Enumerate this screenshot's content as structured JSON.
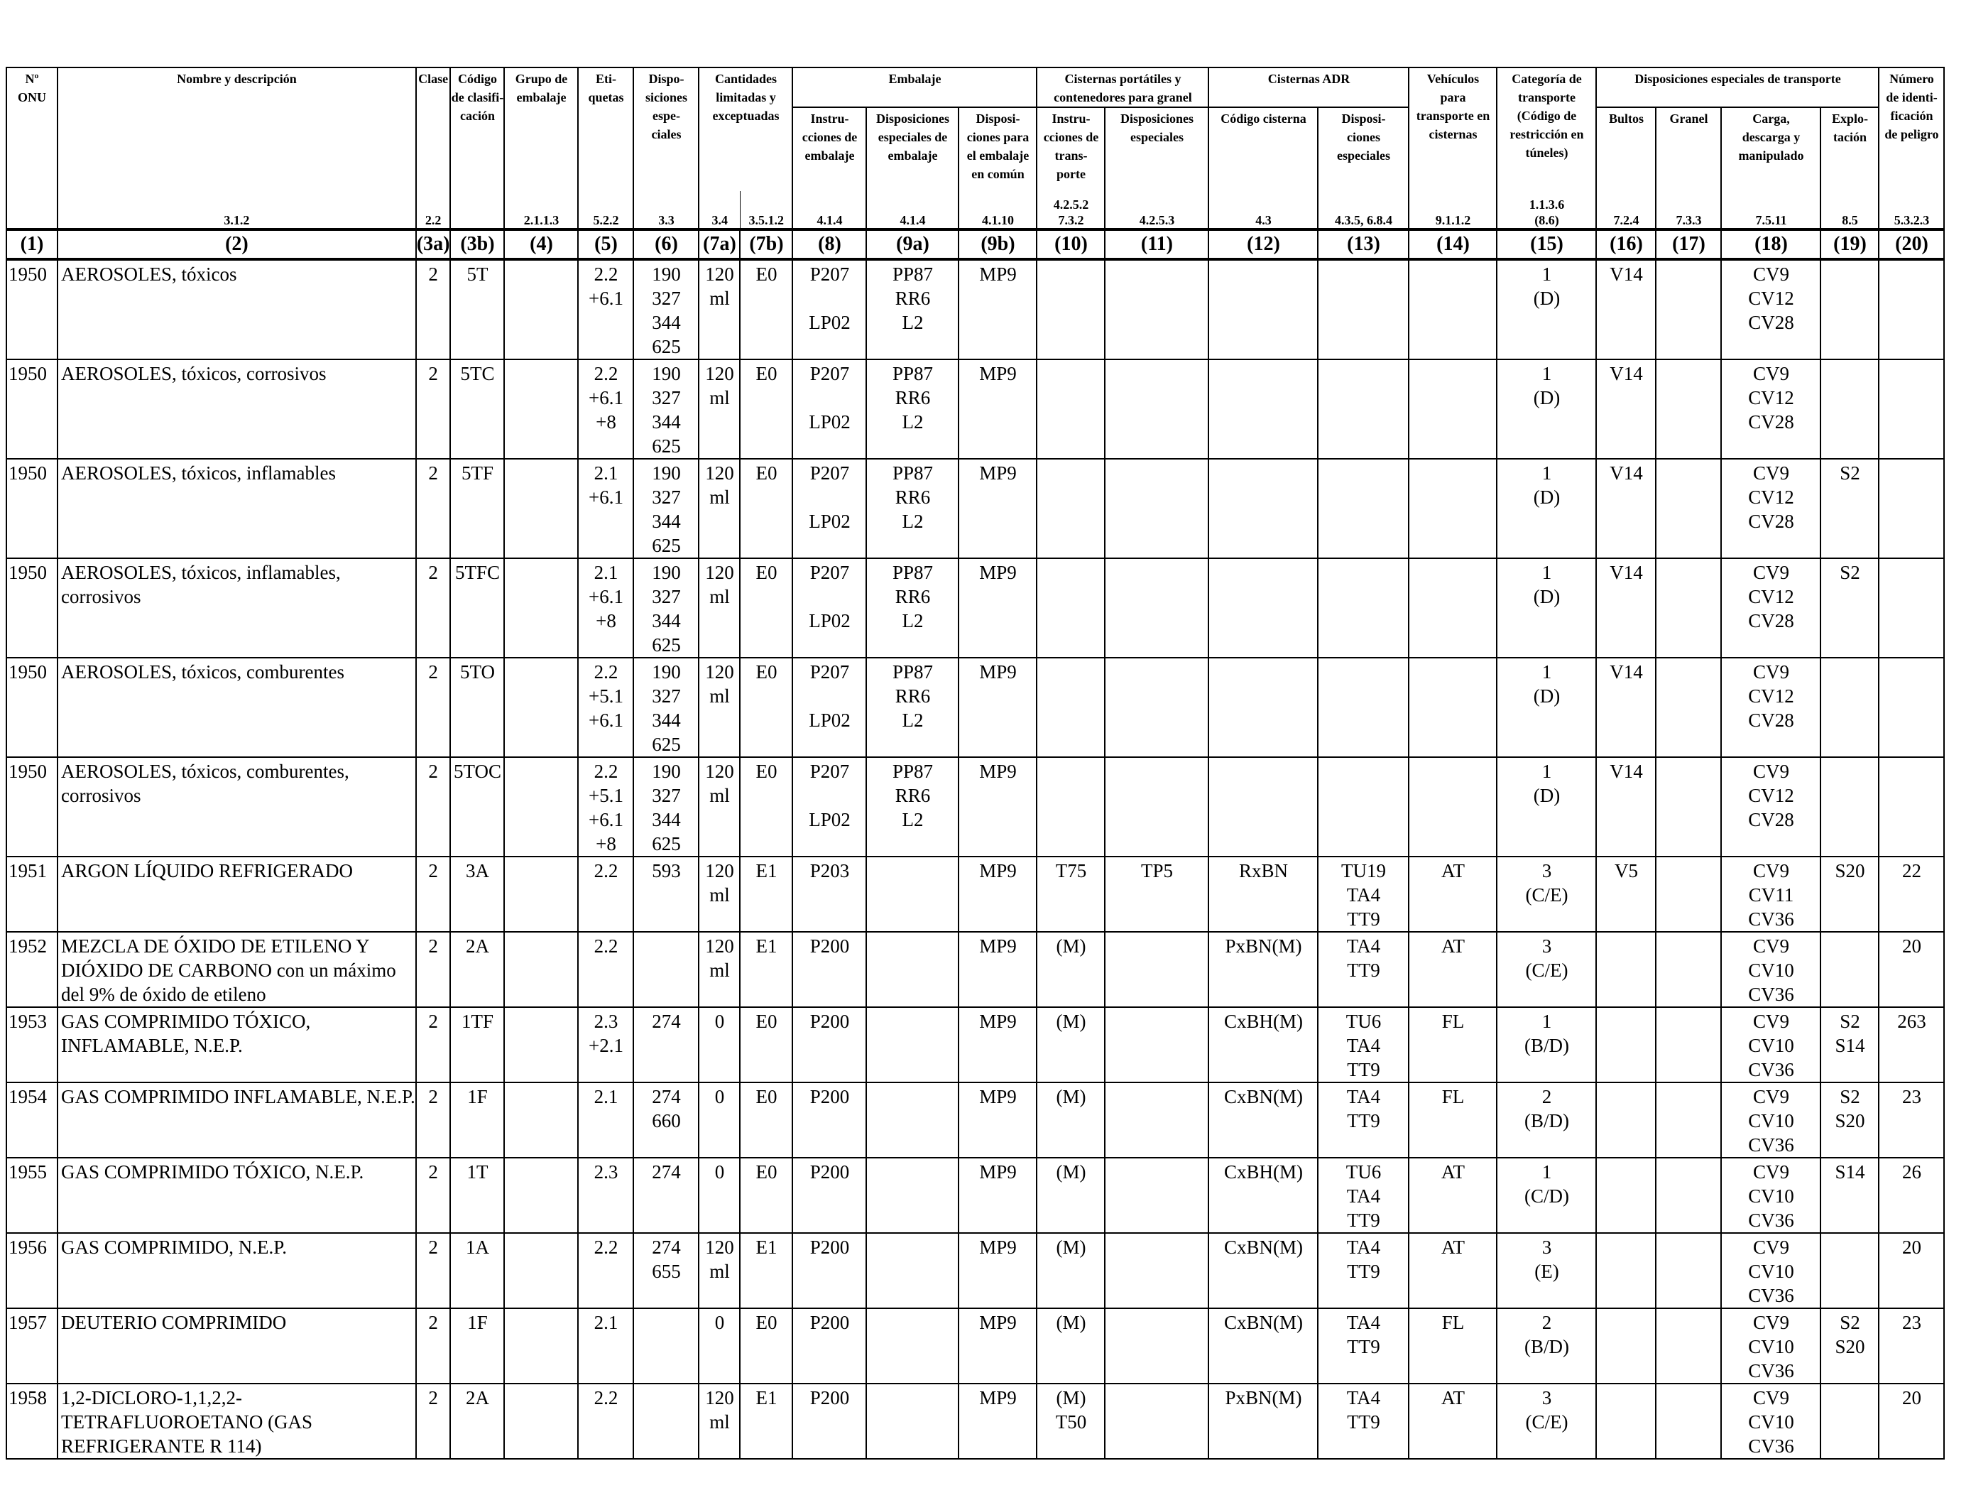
{
  "headers": {
    "onu": [
      "Nº",
      "ONU"
    ],
    "nombre": [
      "Nombre y descripción"
    ],
    "clase": [
      "Clase"
    ],
    "codigo": [
      "Código",
      "de clasifi-",
      "cación"
    ],
    "grupo": [
      "Grupo de",
      "embalaje"
    ],
    "etiquetas": [
      "Eti-",
      "quetas"
    ],
    "disposiciones": [
      "Dispo-",
      "siciones",
      "espe-",
      "ciales"
    ],
    "cantidades": [
      "Cantidades",
      "limitadas y",
      "exceptuadas"
    ],
    "embalaje": [
      "Embalaje"
    ],
    "instrucciones": [
      "Instru-",
      "cciones de",
      "embalaje"
    ],
    "disp_emb": [
      "Disposiciones",
      "especiales de",
      "embalaje"
    ],
    "disp_comun": [
      "Disposi-",
      "ciones para",
      "el embalaje",
      "en común"
    ],
    "cisternas_port": [
      "Cisternas portátiles y",
      "contenedores para granel"
    ],
    "instr_cis": [
      "Instru-",
      "cciones de",
      "trans-",
      "porte"
    ],
    "disp_cis": [
      "Disposiciones",
      "especiales"
    ],
    "cisternas_adr": [
      "Cisternas ADR"
    ],
    "codigo_cisterna": [
      "Código cisterna"
    ],
    "disp_adr": [
      "Disposi-",
      "ciones",
      "especiales"
    ],
    "vehiculos": [
      "Vehículos",
      "para",
      "transporte en",
      "cisternas"
    ],
    "categoria": [
      "Categoría de",
      "transporte",
      "(Código de",
      "restricción en",
      "túneles)"
    ],
    "disp_transporte": [
      "Disposiciones especiales de transporte"
    ],
    "bultos": [
      "Bultos"
    ],
    "granel": [
      "Granel"
    ],
    "carga": [
      "Carga,",
      "descarga y",
      "manipulado"
    ],
    "explotacion": [
      "Explo-",
      "tación"
    ],
    "numero_peligro": [
      "Número",
      "de identi-",
      "ficación",
      "de peligro"
    ]
  },
  "refs": [
    "",
    "3.1.2",
    "2.2",
    "",
    "2.1.1.3",
    "5.2.2",
    "3.3",
    "3.4",
    "3.5.1.2",
    "4.1.4",
    "4.1.4",
    "4.1.10",
    "4.2.5.2\n7.3.2",
    "4.2.5.3",
    "4.3",
    "4.3.5, 6.8.4",
    "9.1.1.2",
    "1.1.3.6\n(8.6)",
    "7.2.4",
    "7.3.3",
    "7.5.11",
    "8.5",
    "5.3.2.3"
  ],
  "colnums": [
    "(1)",
    "(2)",
    "(3a)",
    "(3b)",
    "(4)",
    "(5)",
    "(6)",
    "(7a)",
    "(7b)",
    "(8)",
    "(9a)",
    "(9b)",
    "(10)",
    "(11)",
    "(12)",
    "(13)",
    "(14)",
    "(15)",
    "(16)",
    "(17)",
    "(18)",
    "(19)",
    "(20)"
  ],
  "rows": [
    {
      "c1": "1950",
      "c2": "AEROSOLES, tóxicos",
      "c3a": "2",
      "c3b": "5T",
      "c4": "",
      "c5": "2.2\n+6.1",
      "c6": "190\n327\n344\n625",
      "c7a": "120\nml",
      "c7b": "E0",
      "c8": "P207\n\nLP02",
      "c9a": "PP87\nRR6\nL2",
      "c9b": "MP9",
      "c10": "",
      "c11": "",
      "c12": "",
      "c13": "",
      "c14": "",
      "c15": "1\n(D)",
      "c16": "V14",
      "c17": "",
      "c18": "CV9\nCV12\nCV28",
      "c19": "",
      "c20": ""
    },
    {
      "c1": "1950",
      "c2": "AEROSOLES, tóxicos, corrosivos",
      "c3a": "2",
      "c3b": "5TC",
      "c4": "",
      "c5": "2.2\n+6.1\n+8",
      "c6": "190\n327\n344\n625",
      "c7a": "120\nml",
      "c7b": "E0",
      "c8": "P207\n\nLP02",
      "c9a": "PP87\nRR6\nL2",
      "c9b": "MP9",
      "c10": "",
      "c11": "",
      "c12": "",
      "c13": "",
      "c14": "",
      "c15": "1\n(D)",
      "c16": "V14",
      "c17": "",
      "c18": "CV9\nCV12\nCV28",
      "c19": "",
      "c20": ""
    },
    {
      "c1": "1950",
      "c2": "AEROSOLES, tóxicos, inflamables",
      "c3a": "2",
      "c3b": "5TF",
      "c4": "",
      "c5": "2.1\n+6.1",
      "c6": "190\n327\n344\n625",
      "c7a": "120\nml",
      "c7b": "E0",
      "c8": "P207\n\nLP02",
      "c9a": "PP87\nRR6\nL2",
      "c9b": "MP9",
      "c10": "",
      "c11": "",
      "c12": "",
      "c13": "",
      "c14": "",
      "c15": "1\n(D)",
      "c16": "V14",
      "c17": "",
      "c18": "CV9\nCV12\nCV28",
      "c19": "S2",
      "c20": ""
    },
    {
      "c1": "1950",
      "c2": "AEROSOLES, tóxicos, inflamables,\ncorrosivos",
      "c3a": "2",
      "c3b": "5TFC",
      "c4": "",
      "c5": "2.1\n+6.1\n+8",
      "c6": "190\n327\n344\n625",
      "c7a": "120\nml",
      "c7b": "E0",
      "c8": "P207\n\nLP02",
      "c9a": "PP87\nRR6\nL2",
      "c9b": "MP9",
      "c10": "",
      "c11": "",
      "c12": "",
      "c13": "",
      "c14": "",
      "c15": "1\n(D)",
      "c16": "V14",
      "c17": "",
      "c18": "CV9\nCV12\nCV28",
      "c19": "S2",
      "c20": ""
    },
    {
      "c1": "1950",
      "c2": "AEROSOLES, tóxicos, comburentes",
      "c3a": "2",
      "c3b": "5TO",
      "c4": "",
      "c5": "2.2\n+5.1\n+6.1",
      "c6": "190\n327\n344\n625",
      "c7a": "120\nml",
      "c7b": "E0",
      "c8": "P207\n\nLP02",
      "c9a": "PP87\nRR6\nL2",
      "c9b": "MP9",
      "c10": "",
      "c11": "",
      "c12": "",
      "c13": "",
      "c14": "",
      "c15": "1\n(D)",
      "c16": "V14",
      "c17": "",
      "c18": "CV9\nCV12\nCV28",
      "c19": "",
      "c20": ""
    },
    {
      "c1": "1950",
      "c2": "AEROSOLES, tóxicos, comburentes,\ncorrosivos",
      "c3a": "2",
      "c3b": "5TOC",
      "c4": "",
      "c5": "2.2\n+5.1\n+6.1\n+8",
      "c6": "190\n327\n344\n625",
      "c7a": "120\nml",
      "c7b": "E0",
      "c8": "P207\n\nLP02",
      "c9a": "PP87\nRR6\nL2",
      "c9b": "MP9",
      "c10": "",
      "c11": "",
      "c12": "",
      "c13": "",
      "c14": "",
      "c15": "1\n(D)",
      "c16": "V14",
      "c17": "",
      "c18": "CV9\nCV12\nCV28",
      "c19": "",
      "c20": ""
    },
    {
      "c1": "1951",
      "c2": "ARGON LÍQUIDO REFRIGERADO",
      "c3a": "2",
      "c3b": "3A",
      "c4": "",
      "c5": "2.2",
      "c6": "593",
      "c7a": "120\nml",
      "c7b": "E1",
      "c8": "P203",
      "c9a": "",
      "c9b": "MP9",
      "c10": "T75",
      "c11": "TP5",
      "c12": "RxBN",
      "c13": "TU19\nTA4\nTT9",
      "c14": "AT",
      "c15": "3\n(C/E)",
      "c16": "V5",
      "c17": "",
      "c18": "CV9\nCV11\nCV36",
      "c19": "S20",
      "c20": "22"
    },
    {
      "c1": "1952",
      "c2": "MEZCLA DE ÓXIDO DE ETILENO Y\nDIÓXIDO DE CARBONO con un máximo\ndel 9% de óxido de etileno",
      "c3a": "2",
      "c3b": "2A",
      "c4": "",
      "c5": "2.2",
      "c6": "",
      "c7a": "120\nml",
      "c7b": "E1",
      "c8": "P200",
      "c9a": "",
      "c9b": "MP9",
      "c10": "(M)",
      "c11": "",
      "c12": "PxBN(M)",
      "c13": "TA4\nTT9",
      "c14": "AT",
      "c15": "3\n(C/E)",
      "c16": "",
      "c17": "",
      "c18": "CV9\nCV10\nCV36",
      "c19": "",
      "c20": "20"
    },
    {
      "c1": "1953",
      "c2": "GAS COMPRIMIDO TÓXICO,\nINFLAMABLE, N.E.P.",
      "c3a": "2",
      "c3b": "1TF",
      "c4": "",
      "c5": "2.3\n+2.1",
      "c6": "274",
      "c7a": "0",
      "c7b": "E0",
      "c8": "P200",
      "c9a": "",
      "c9b": "MP9",
      "c10": "(M)",
      "c11": "",
      "c12": "CxBH(M)",
      "c13": "TU6\nTA4\nTT9",
      "c14": "FL",
      "c15": "1\n(B/D)",
      "c16": "",
      "c17": "",
      "c18": "CV9\nCV10\nCV36",
      "c19": "S2\nS14",
      "c20": "263"
    },
    {
      "c1": "1954",
      "c2": "GAS COMPRIMIDO INFLAMABLE, N.E.P.",
      "c3a": "2",
      "c3b": "1F",
      "c4": "",
      "c5": "2.1",
      "c6": "274\n660",
      "c7a": "0",
      "c7b": "E0",
      "c8": "P200",
      "c9a": "",
      "c9b": "MP9",
      "c10": "(M)",
      "c11": "",
      "c12": "CxBN(M)",
      "c13": "TA4\nTT9",
      "c14": "FL",
      "c15": "2\n(B/D)",
      "c16": "",
      "c17": "",
      "c18": "CV9\nCV10\nCV36",
      "c19": "S2\nS20",
      "c20": "23"
    },
    {
      "c1": "1955",
      "c2": "GAS COMPRIMIDO TÓXICO, N.E.P.",
      "c3a": "2",
      "c3b": "1T",
      "c4": "",
      "c5": "2.3",
      "c6": "274",
      "c7a": "0",
      "c7b": "E0",
      "c8": "P200",
      "c9a": "",
      "c9b": "MP9",
      "c10": "(M)",
      "c11": "",
      "c12": "CxBH(M)",
      "c13": "TU6\nTA4\nTT9",
      "c14": "AT",
      "c15": "1\n(C/D)",
      "c16": "",
      "c17": "",
      "c18": "CV9\nCV10\nCV36",
      "c19": "S14",
      "c20": "26"
    },
    {
      "c1": "1956",
      "c2": "GAS COMPRIMIDO, N.E.P.",
      "c3a": "2",
      "c3b": "1A",
      "c4": "",
      "c5": "2.2",
      "c6": "274\n655",
      "c7a": "120\nml",
      "c7b": "E1",
      "c8": "P200",
      "c9a": "",
      "c9b": "MP9",
      "c10": "(M)",
      "c11": "",
      "c12": "CxBN(M)",
      "c13": "TA4\nTT9",
      "c14": "AT",
      "c15": "3\n(E)",
      "c16": "",
      "c17": "",
      "c18": "CV9\nCV10\nCV36",
      "c19": "",
      "c20": "20"
    },
    {
      "c1": "1957",
      "c2": "DEUTERIO COMPRIMIDO",
      "c3a": "2",
      "c3b": "1F",
      "c4": "",
      "c5": "2.1",
      "c6": "",
      "c7a": "0",
      "c7b": "E0",
      "c8": "P200",
      "c9a": "",
      "c9b": "MP9",
      "c10": "(M)",
      "c11": "",
      "c12": "CxBN(M)",
      "c13": "TA4\nTT9",
      "c14": "FL",
      "c15": "2\n(B/D)",
      "c16": "",
      "c17": "",
      "c18": "CV9\nCV10\nCV36",
      "c19": "S2\nS20",
      "c20": "23"
    },
    {
      "c1": "1958",
      "c2": "1,2-DICLORO-1,1,2,2-\nTETRAFLUOROETANO (GAS\nREFRIGERANTE R 114)",
      "c3a": "2",
      "c3b": "2A",
      "c4": "",
      "c5": "2.2",
      "c6": "",
      "c7a": "120\nml",
      "c7b": "E1",
      "c8": "P200",
      "c9a": "",
      "c9b": "MP9",
      "c10": "(M)\nT50",
      "c11": "",
      "c12": "PxBN(M)",
      "c13": "TA4\nTT9",
      "c14": "AT",
      "c15": "3\n(C/E)",
      "c16": "",
      "c17": "",
      "c18": "CV9\nCV10\nCV36",
      "c19": "",
      "c20": "20"
    }
  ]
}
